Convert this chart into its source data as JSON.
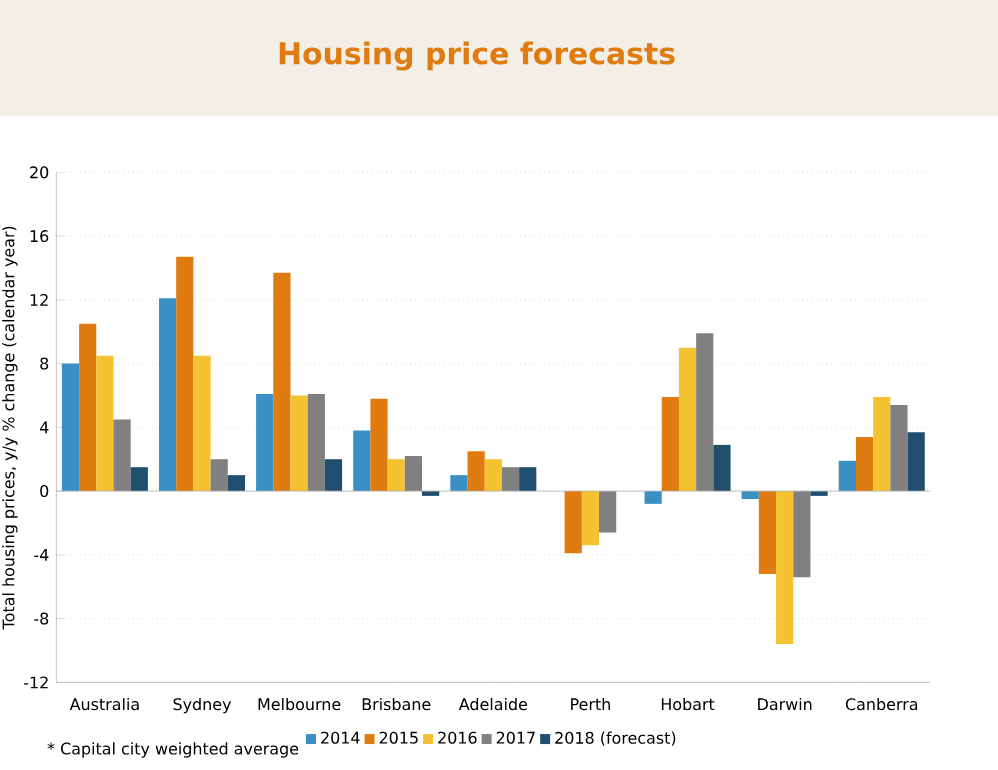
{
  "chart_data": {
    "type": "bar",
    "title": "Housing price forecasts",
    "ylabel": "Total housing prices, y/y % change (calendar year)",
    "categories": [
      "Australia",
      "Sydney",
      "Melbourne",
      "Brisbane",
      "Adelaide",
      "Perth",
      "Hobart",
      "Darwin",
      "Canberra"
    ],
    "series": [
      {
        "name": "2014",
        "color": "#3a8fc4",
        "values": [
          8,
          12.1,
          6.1,
          3.8,
          1,
          null,
          -0.8,
          -0.5,
          1.9
        ]
      },
      {
        "name": "2015",
        "color": "#e07b10",
        "values": [
          10.5,
          14.7,
          13.7,
          5.8,
          2.5,
          -3.9,
          5.9,
          -5.2,
          3.4
        ]
      },
      {
        "name": "2016",
        "color": "#f5c232",
        "values": [
          8.5,
          8.5,
          6,
          2,
          2,
          -3.4,
          9,
          -9.6,
          5.9
        ]
      },
      {
        "name": "2017",
        "color": "#808080",
        "values": [
          4.5,
          2,
          6.1,
          2.2,
          1.5,
          -2.6,
          9.9,
          -5.4,
          5.4
        ]
      },
      {
        "name": "2018 (forecast)",
        "color": "#1f4e6e",
        "values": [
          1.5,
          1,
          2,
          -0.3,
          1.5,
          null,
          2.9,
          -0.3,
          3.7
        ]
      }
    ],
    "ylim": [
      -12,
      20
    ],
    "yticks": [
      -12,
      -8,
      -4,
      0,
      4,
      8,
      12,
      16,
      20
    ],
    "grid": "y",
    "legend": "bottom",
    "annotations": [
      "* Capital city weighted average"
    ]
  }
}
